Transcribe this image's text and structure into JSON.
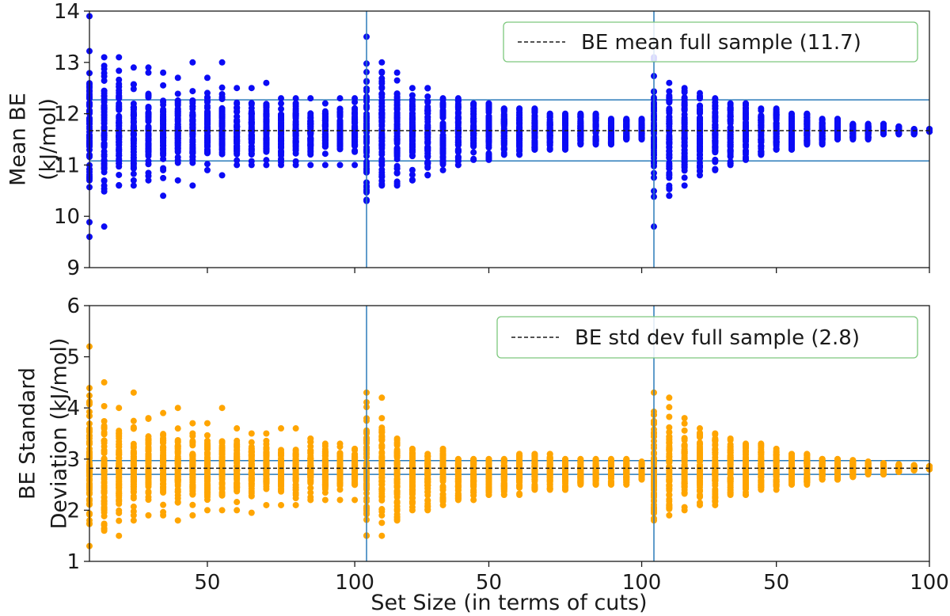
{
  "chart_data": [
    {
      "type": "scatter",
      "title": "",
      "ylabel_lines": [
        "Mean BE",
        "(kJ/mol)"
      ],
      "ylim": [
        9,
        14
      ],
      "yticks": [
        9,
        10,
        11,
        12,
        13,
        14
      ],
      "x_segments": [
        {
          "xlim": [
            10,
            104
          ],
          "xticks": [
            50,
            100
          ],
          "tick_labels": [
            "50",
            "100"
          ]
        },
        {
          "xlim": [
            10,
            104
          ],
          "xticks": [
            50,
            100
          ],
          "tick_labels": [
            "50",
            "100"
          ]
        },
        {
          "xlim": [
            10,
            100
          ],
          "xticks": [
            50,
            100
          ],
          "tick_labels": [
            "50",
            "100"
          ]
        }
      ],
      "point_color": "#0b0bf5",
      "reference_line": {
        "value": 11.67,
        "style": "dashed",
        "color": "#1a1a1a",
        "legend": "BE mean full sample (11.7)"
      },
      "band_lines": {
        "values": [
          11.08,
          12.27
        ],
        "color": "#2b7bba"
      },
      "separator_color": "#2b7bba",
      "legend_position": "top-right",
      "legend_border": "#7dc87d",
      "spread_model": {
        "center": 11.67,
        "spread_at_x10": 2.2,
        "decay": "1/sqrt(x)"
      },
      "series": [
        {
          "name": "segment 1",
          "x": [
            10,
            15,
            20,
            25,
            30,
            35,
            40,
            45,
            50,
            55,
            60,
            65,
            70,
            75,
            80,
            85,
            90,
            95,
            100
          ],
          "ymin": [
            9.6,
            9.8,
            10.6,
            10.6,
            10.7,
            10.4,
            10.7,
            10.6,
            10.9,
            10.8,
            11.0,
            11.0,
            11.0,
            11.0,
            11.0,
            11.0,
            11.0,
            11.0,
            11.0
          ],
          "ymax": [
            13.9,
            13.1,
            13.1,
            12.9,
            12.9,
            12.8,
            12.7,
            13.0,
            12.7,
            13.0,
            12.5,
            12.5,
            12.6,
            12.3,
            12.3,
            12.3,
            12.2,
            12.3,
            12.3
          ]
        },
        {
          "name": "segment 2",
          "x": [
            10,
            15,
            20,
            25,
            30,
            35,
            40,
            45,
            50,
            55,
            60,
            65,
            70,
            75,
            80,
            85,
            90,
            95,
            100
          ],
          "ymin": [
            10.3,
            10.6,
            10.6,
            10.7,
            10.8,
            10.9,
            11.0,
            11.1,
            11.1,
            11.2,
            11.2,
            11.3,
            11.3,
            11.3,
            11.4,
            11.4,
            11.4,
            11.5,
            11.5
          ],
          "ymax": [
            13.5,
            13.0,
            12.8,
            12.5,
            12.5,
            12.3,
            12.3,
            12.2,
            12.2,
            12.1,
            12.1,
            12.1,
            12.0,
            12.0,
            12.0,
            12.0,
            11.9,
            11.9,
            11.9
          ]
        },
        {
          "name": "segment 3",
          "x": [
            10,
            15,
            20,
            25,
            30,
            35,
            40,
            45,
            50,
            55,
            60,
            65,
            70,
            75,
            80,
            85,
            90,
            95,
            100
          ],
          "ymin": [
            9.8,
            10.4,
            10.6,
            10.8,
            10.9,
            11.0,
            11.1,
            11.2,
            11.3,
            11.3,
            11.4,
            11.4,
            11.5,
            11.5,
            11.5,
            11.6,
            11.6,
            11.6,
            11.65
          ],
          "ymax": [
            13.1,
            12.6,
            12.5,
            12.4,
            12.3,
            12.2,
            12.2,
            12.1,
            12.1,
            12.0,
            12.0,
            11.9,
            11.9,
            11.8,
            11.8,
            11.8,
            11.75,
            11.7,
            11.7
          ]
        }
      ]
    },
    {
      "type": "scatter",
      "title": "",
      "ylabel_lines": [
        "BE Standard",
        "Deviation (kJ/mol)"
      ],
      "ylim": [
        1,
        6
      ],
      "yticks": [
        1,
        2,
        3,
        4,
        5,
        6
      ],
      "x_segments": [
        {
          "xlim": [
            10,
            104
          ],
          "xticks": [
            50,
            100
          ],
          "tick_labels": [
            "50",
            "100"
          ]
        },
        {
          "xlim": [
            10,
            104
          ],
          "xticks": [
            50,
            100
          ],
          "tick_labels": [
            "50",
            "100"
          ]
        },
        {
          "xlim": [
            10,
            100
          ],
          "xticks": [
            50,
            100
          ],
          "tick_labels": [
            "50",
            "100"
          ]
        }
      ],
      "xlabel": "Set Size (in terms of cuts)",
      "point_color": "#ffa500",
      "reference_line": {
        "value": 2.82,
        "style": "dashed",
        "color": "#1a1a1a",
        "legend": "BE std dev full sample (2.8)"
      },
      "band_lines": {
        "values": [
          2.7,
          2.97
        ],
        "color": "#2b7bba"
      },
      "separator_color": "#2b7bba",
      "legend_position": "top-right",
      "legend_border": "#7dc87d",
      "spread_model": {
        "center": 2.82,
        "spread_at_x10": 2.0,
        "decay": "1/sqrt(x)"
      },
      "series": [
        {
          "name": "segment 1",
          "x": [
            10,
            15,
            20,
            25,
            30,
            35,
            40,
            45,
            50,
            55,
            60,
            65,
            70,
            75,
            80,
            85,
            90,
            95,
            100
          ],
          "ymin": [
            1.3,
            1.6,
            1.5,
            1.8,
            1.9,
            1.9,
            1.8,
            1.9,
            2.0,
            2.0,
            2.0,
            1.95,
            2.1,
            2.1,
            2.1,
            2.2,
            2.2,
            2.2,
            2.2
          ],
          "ymax": [
            5.2,
            4.5,
            4.0,
            4.3,
            3.8,
            3.9,
            4.0,
            3.7,
            3.7,
            4.0,
            3.6,
            3.5,
            3.5,
            3.6,
            3.6,
            3.4,
            3.3,
            3.3,
            3.2
          ]
        },
        {
          "name": "segment 2",
          "x": [
            10,
            15,
            20,
            25,
            30,
            35,
            40,
            45,
            50,
            55,
            60,
            65,
            70,
            75,
            80,
            85,
            90,
            95,
            100
          ],
          "ymin": [
            1.5,
            1.5,
            1.8,
            2.0,
            2.0,
            2.1,
            2.2,
            2.2,
            2.3,
            2.3,
            2.3,
            2.4,
            2.4,
            2.4,
            2.5,
            2.5,
            2.5,
            2.5,
            2.6
          ],
          "ymax": [
            4.3,
            4.2,
            3.4,
            3.2,
            3.1,
            3.2,
            3.0,
            3.0,
            3.0,
            3.0,
            3.1,
            3.1,
            3.1,
            3.0,
            3.0,
            3.0,
            3.0,
            3.0,
            2.95
          ]
        },
        {
          "name": "segment 3",
          "x": [
            10,
            15,
            20,
            25,
            30,
            35,
            40,
            45,
            50,
            55,
            60,
            65,
            70,
            75,
            80,
            85,
            90,
            95,
            100
          ],
          "ymin": [
            1.8,
            1.9,
            2.0,
            2.1,
            2.1,
            2.3,
            2.3,
            2.4,
            2.4,
            2.5,
            2.5,
            2.6,
            2.6,
            2.65,
            2.7,
            2.7,
            2.75,
            2.78,
            2.8
          ],
          "ymax": [
            4.3,
            4.2,
            3.8,
            3.6,
            3.5,
            3.4,
            3.3,
            3.3,
            3.2,
            3.1,
            3.1,
            3.0,
            3.0,
            2.98,
            2.95,
            2.92,
            2.9,
            2.88,
            2.86
          ]
        }
      ]
    }
  ]
}
